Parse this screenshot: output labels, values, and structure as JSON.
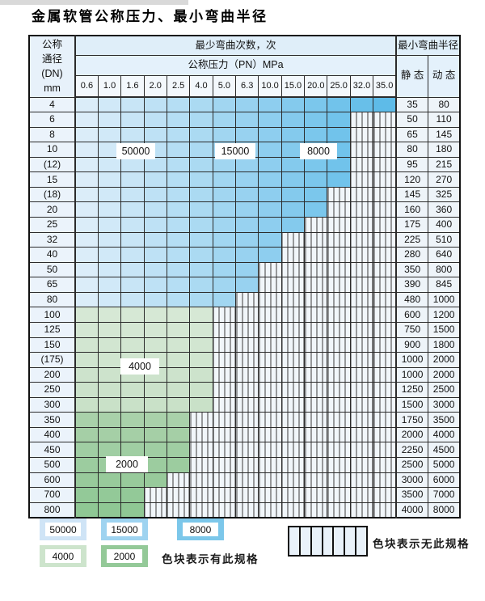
{
  "title": "金属软管公称压力、最小弯曲半径",
  "table": {
    "header": {
      "dn_lines": [
        "公称",
        "通径",
        "(DN)",
        "mm"
      ],
      "bend_times": "最少弯曲次数，次",
      "pressure": "公称压力（PN）MPa",
      "min_radius": "最小弯曲半径",
      "static_label": "静 态",
      "dynamic_label": "动 态",
      "pressures": [
        "0.6",
        "1.0",
        "1.6",
        "2.0",
        "2.5",
        "4.0",
        "5.0",
        "6.3",
        "10.0",
        "15.0",
        "20.0",
        "25.0",
        "32.0",
        "35.0"
      ]
    },
    "rows": [
      {
        "dn": "4",
        "zone": "blue",
        "colored_columns": 14,
        "static": "35",
        "dynamic": "80"
      },
      {
        "dn": "6",
        "zone": "blue",
        "colored_columns": 12,
        "static": "50",
        "dynamic": "110"
      },
      {
        "dn": "8",
        "zone": "blue",
        "colored_columns": 12,
        "static": "65",
        "dynamic": "145"
      },
      {
        "dn": "10",
        "zone": "blue",
        "colored_columns": 12,
        "static": "80",
        "dynamic": "180"
      },
      {
        "dn": "(12)",
        "zone": "blue",
        "colored_columns": 12,
        "static": "95",
        "dynamic": "215"
      },
      {
        "dn": "15",
        "zone": "blue",
        "colored_columns": 12,
        "static": "120",
        "dynamic": "270"
      },
      {
        "dn": "(18)",
        "zone": "blue",
        "colored_columns": 11,
        "static": "145",
        "dynamic": "325"
      },
      {
        "dn": "20",
        "zone": "blue",
        "colored_columns": 11,
        "static": "160",
        "dynamic": "360"
      },
      {
        "dn": "25",
        "zone": "blue",
        "colored_columns": 10,
        "static": "175",
        "dynamic": "400"
      },
      {
        "dn": "32",
        "zone": "blue",
        "colored_columns": 9,
        "static": "225",
        "dynamic": "510"
      },
      {
        "dn": "40",
        "zone": "blue",
        "colored_columns": 9,
        "static": "280",
        "dynamic": "640"
      },
      {
        "dn": "50",
        "zone": "blue",
        "colored_columns": 8,
        "static": "350",
        "dynamic": "800"
      },
      {
        "dn": "65",
        "zone": "blue",
        "colored_columns": 8,
        "static": "390",
        "dynamic": "845"
      },
      {
        "dn": "80",
        "zone": "blue",
        "colored_columns": 7,
        "static": "480",
        "dynamic": "1000"
      },
      {
        "dn": "100",
        "zone": "green",
        "colored_columns": 6,
        "static": "600",
        "dynamic": "1200"
      },
      {
        "dn": "125",
        "zone": "green",
        "colored_columns": 6,
        "static": "750",
        "dynamic": "1500"
      },
      {
        "dn": "150",
        "zone": "green",
        "colored_columns": 6,
        "static": "900",
        "dynamic": "1800"
      },
      {
        "dn": "(175)",
        "zone": "green",
        "colored_columns": 6,
        "static": "1000",
        "dynamic": "2000"
      },
      {
        "dn": "200",
        "zone": "green",
        "colored_columns": 6,
        "static": "1000",
        "dynamic": "2000"
      },
      {
        "dn": "250",
        "zone": "green",
        "colored_columns": 6,
        "static": "1250",
        "dynamic": "2500"
      },
      {
        "dn": "300",
        "zone": "green",
        "colored_columns": 6,
        "static": "1500",
        "dynamic": "3000"
      },
      {
        "dn": "350",
        "zone": "green",
        "colored_columns": 5,
        "static": "1750",
        "dynamic": "3500"
      },
      {
        "dn": "400",
        "zone": "green",
        "colored_columns": 5,
        "static": "2000",
        "dynamic": "4000"
      },
      {
        "dn": "450",
        "zone": "green",
        "colored_columns": 5,
        "static": "2250",
        "dynamic": "4500"
      },
      {
        "dn": "500",
        "zone": "green",
        "colored_columns": 5,
        "static": "2500",
        "dynamic": "5000"
      },
      {
        "dn": "600",
        "zone": "green",
        "colored_columns": 4,
        "static": "3000",
        "dynamic": "6000"
      },
      {
        "dn": "700",
        "zone": "green",
        "colored_columns": 3,
        "static": "3500",
        "dynamic": "7000"
      },
      {
        "dn": "800",
        "zone": "green",
        "colored_columns": 3,
        "static": "4000",
        "dynamic": "8000"
      }
    ]
  },
  "zone_labels": {
    "b50000": "50000",
    "b15000": "15000",
    "b8000": "8000",
    "g4000": "4000",
    "g2000": "2000"
  },
  "legend": {
    "swatches": [
      {
        "label": "50000",
        "color": "#cfe4f6"
      },
      {
        "label": "15000",
        "color": "#9ed3f0"
      },
      {
        "label": "8000",
        "color": "#7cc7ea"
      },
      {
        "label": "4000",
        "color": "#cde4cc"
      },
      {
        "label": "2000",
        "color": "#94c998"
      }
    ],
    "has_spec_note": "色块表示有此规格",
    "no_spec_note": "色块表示无此规格"
  },
  "colors": {
    "blue_light": "#dbedf9",
    "blue_dark": "#5ebbe8",
    "green_band_light_start": "#d6e8d5",
    "green_band_light_end": "#c9e1c8",
    "green_band_dark_start": "#a9d1aa",
    "green_band_dark_end": "#8fc794",
    "hatch_bg": "#f1f6fa",
    "hatch_line": "#3a3a3a"
  }
}
